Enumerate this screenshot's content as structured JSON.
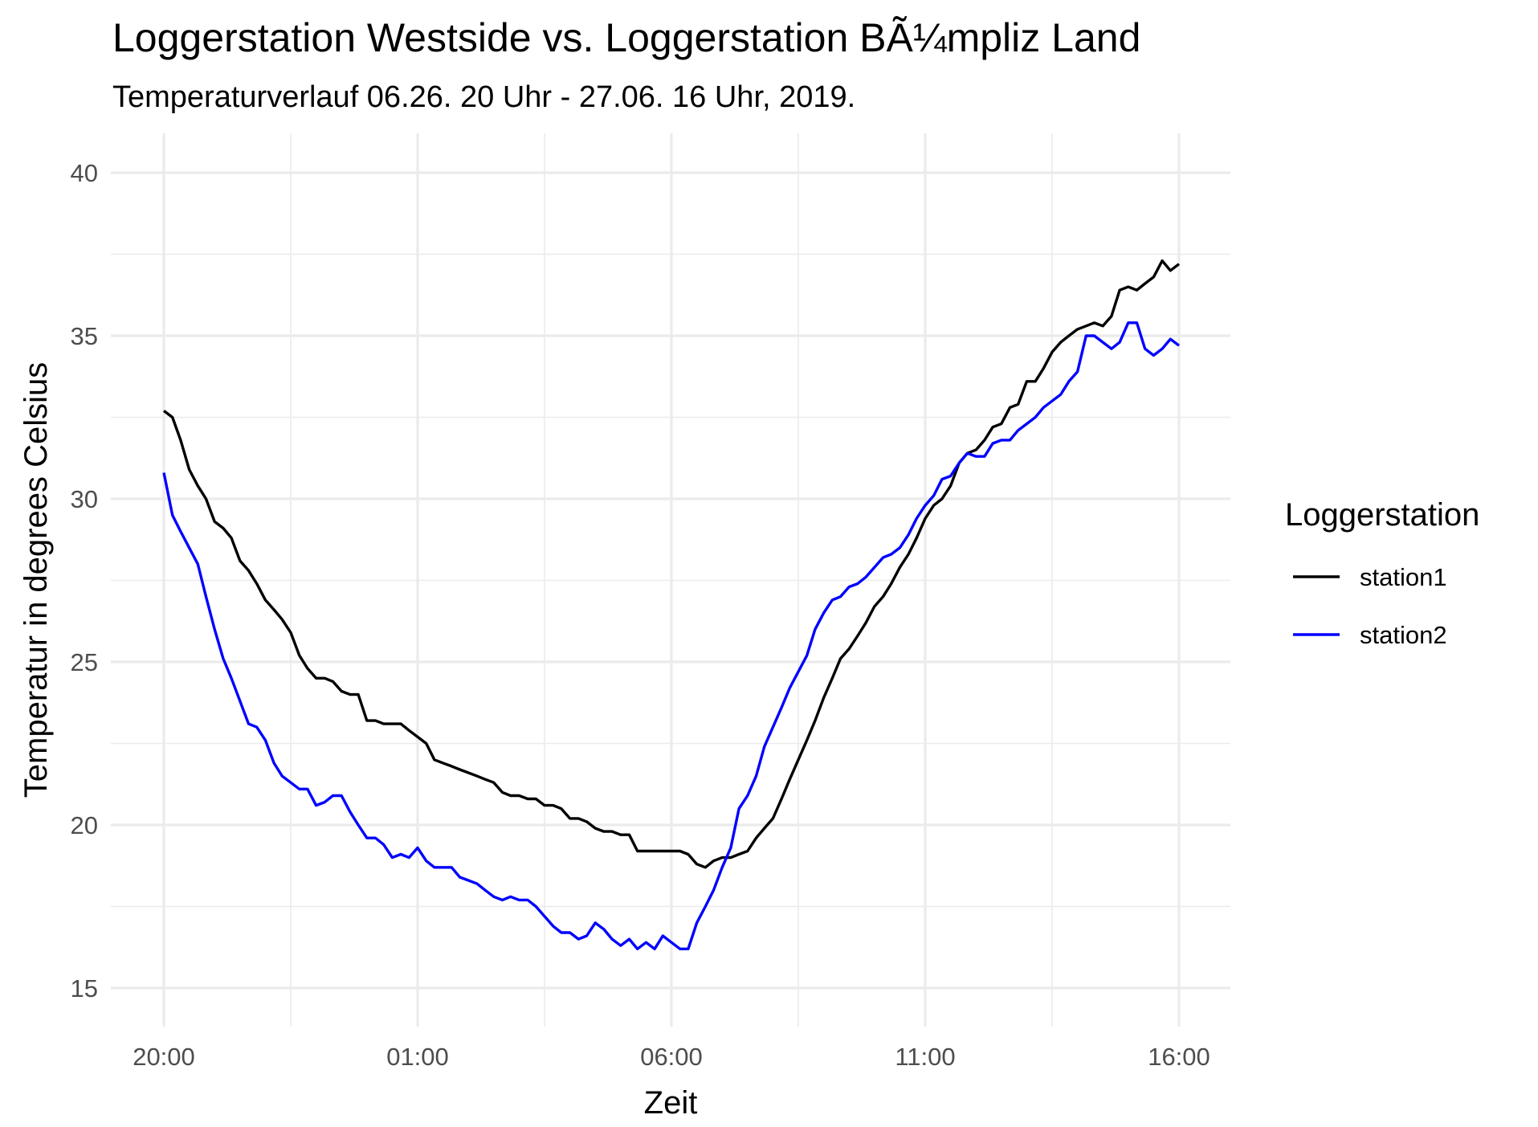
{
  "chart_data": {
    "type": "line",
    "title": "Loggerstation Westside vs. Loggerstation BÃ¼mpliz Land",
    "subtitle": "Temperaturverlauf 06.26. 20 Uhr - 27.06. 16 Uhr, 2019.",
    "xlabel": "Zeit",
    "ylabel": "Temperatur in degrees Celsius",
    "x_unit": "hours",
    "x_range": [
      20,
      40
    ],
    "x_ticks": [
      20,
      25,
      30,
      35,
      40
    ],
    "x_tick_labels": [
      "20:00",
      "01:00",
      "06:00",
      "11:00",
      "16:00"
    ],
    "ylim": [
      15,
      40
    ],
    "y_ticks": [
      15,
      20,
      25,
      30,
      35,
      40
    ],
    "y_tick_labels": [
      "15",
      "20",
      "25",
      "30",
      "35",
      "40"
    ],
    "grid": true,
    "legend": {
      "title": "Loggerstation",
      "position": "right"
    },
    "series": [
      {
        "name": "station1",
        "color": "#000000",
        "points": [
          [
            20.0,
            32.7
          ],
          [
            20.17,
            32.5
          ],
          [
            20.33,
            31.8
          ],
          [
            20.5,
            30.9
          ],
          [
            20.67,
            30.4
          ],
          [
            20.83,
            30.0
          ],
          [
            21.0,
            29.3
          ],
          [
            21.17,
            29.1
          ],
          [
            21.33,
            28.8
          ],
          [
            21.5,
            28.1
          ],
          [
            21.67,
            27.8
          ],
          [
            21.83,
            27.4
          ],
          [
            22.0,
            26.9
          ],
          [
            22.17,
            26.6
          ],
          [
            22.33,
            26.3
          ],
          [
            22.5,
            25.9
          ],
          [
            22.67,
            25.2
          ],
          [
            22.83,
            24.8
          ],
          [
            23.0,
            24.5
          ],
          [
            23.17,
            24.5
          ],
          [
            23.33,
            24.4
          ],
          [
            23.5,
            24.1
          ],
          [
            23.67,
            24.0
          ],
          [
            23.83,
            24.0
          ],
          [
            24.0,
            23.2
          ],
          [
            24.17,
            23.2
          ],
          [
            24.33,
            23.1
          ],
          [
            24.5,
            23.1
          ],
          [
            24.67,
            23.1
          ],
          [
            24.83,
            22.9
          ],
          [
            25.0,
            22.7
          ],
          [
            25.17,
            22.5
          ],
          [
            25.33,
            22.0
          ],
          [
            25.5,
            21.9
          ],
          [
            25.67,
            21.8
          ],
          [
            25.83,
            21.7
          ],
          [
            26.0,
            21.6
          ],
          [
            26.17,
            21.5
          ],
          [
            26.33,
            21.4
          ],
          [
            26.5,
            21.3
          ],
          [
            26.67,
            21.0
          ],
          [
            26.83,
            20.9
          ],
          [
            27.0,
            20.9
          ],
          [
            27.17,
            20.8
          ],
          [
            27.33,
            20.8
          ],
          [
            27.5,
            20.6
          ],
          [
            27.67,
            20.6
          ],
          [
            27.83,
            20.5
          ],
          [
            28.0,
            20.2
          ],
          [
            28.17,
            20.2
          ],
          [
            28.33,
            20.1
          ],
          [
            28.5,
            19.9
          ],
          [
            28.67,
            19.8
          ],
          [
            28.83,
            19.8
          ],
          [
            29.0,
            19.7
          ],
          [
            29.17,
            19.7
          ],
          [
            29.33,
            19.2
          ],
          [
            29.5,
            19.2
          ],
          [
            29.67,
            19.2
          ],
          [
            29.83,
            19.2
          ],
          [
            30.0,
            19.2
          ],
          [
            30.17,
            19.2
          ],
          [
            30.33,
            19.1
          ],
          [
            30.5,
            18.8
          ],
          [
            30.67,
            18.7
          ],
          [
            30.83,
            18.9
          ],
          [
            31.0,
            19.0
          ],
          [
            31.17,
            19.0
          ],
          [
            31.33,
            19.1
          ],
          [
            31.5,
            19.2
          ],
          [
            31.67,
            19.6
          ],
          [
            31.83,
            19.9
          ],
          [
            32.0,
            20.2
          ],
          [
            32.17,
            20.8
          ],
          [
            32.33,
            21.4
          ],
          [
            32.5,
            22.0
          ],
          [
            32.67,
            22.6
          ],
          [
            32.83,
            23.2
          ],
          [
            33.0,
            23.9
          ],
          [
            33.17,
            24.5
          ],
          [
            33.33,
            25.1
          ],
          [
            33.5,
            25.4
          ],
          [
            33.67,
            25.8
          ],
          [
            33.83,
            26.2
          ],
          [
            34.0,
            26.7
          ],
          [
            34.17,
            27.0
          ],
          [
            34.33,
            27.4
          ],
          [
            34.5,
            27.9
          ],
          [
            34.67,
            28.3
          ],
          [
            34.83,
            28.8
          ],
          [
            35.0,
            29.4
          ],
          [
            35.17,
            29.8
          ],
          [
            35.33,
            30.0
          ],
          [
            35.5,
            30.4
          ],
          [
            35.67,
            31.1
          ],
          [
            35.83,
            31.4
          ],
          [
            36.0,
            31.5
          ],
          [
            36.17,
            31.8
          ],
          [
            36.33,
            32.2
          ],
          [
            36.5,
            32.3
          ],
          [
            36.67,
            32.8
          ],
          [
            36.83,
            32.9
          ],
          [
            37.0,
            33.6
          ],
          [
            37.17,
            33.6
          ],
          [
            37.33,
            34.0
          ],
          [
            37.5,
            34.5
          ],
          [
            37.67,
            34.8
          ],
          [
            37.83,
            35.0
          ],
          [
            38.0,
            35.2
          ],
          [
            38.17,
            35.3
          ],
          [
            38.33,
            35.4
          ],
          [
            38.5,
            35.3
          ],
          [
            38.67,
            35.6
          ],
          [
            38.83,
            36.4
          ],
          [
            39.0,
            36.5
          ],
          [
            39.17,
            36.4
          ],
          [
            39.33,
            36.6
          ],
          [
            39.5,
            36.8
          ],
          [
            39.67,
            37.3
          ],
          [
            39.83,
            37.0
          ],
          [
            40.0,
            37.2
          ]
        ]
      },
      {
        "name": "station2",
        "color": "#0000ff",
        "points": [
          [
            20.0,
            30.8
          ],
          [
            20.17,
            29.5
          ],
          [
            20.33,
            29.0
          ],
          [
            20.5,
            28.5
          ],
          [
            20.67,
            28.0
          ],
          [
            20.83,
            27.0
          ],
          [
            21.0,
            26.0
          ],
          [
            21.17,
            25.1
          ],
          [
            21.33,
            24.5
          ],
          [
            21.5,
            23.8
          ],
          [
            21.67,
            23.1
          ],
          [
            21.83,
            23.0
          ],
          [
            22.0,
            22.6
          ],
          [
            22.17,
            21.9
          ],
          [
            22.33,
            21.5
          ],
          [
            22.5,
            21.3
          ],
          [
            22.67,
            21.1
          ],
          [
            22.83,
            21.1
          ],
          [
            23.0,
            20.6
          ],
          [
            23.17,
            20.7
          ],
          [
            23.33,
            20.9
          ],
          [
            23.5,
            20.9
          ],
          [
            23.67,
            20.4
          ],
          [
            23.83,
            20.0
          ],
          [
            24.0,
            19.6
          ],
          [
            24.17,
            19.6
          ],
          [
            24.33,
            19.4
          ],
          [
            24.5,
            19.0
          ],
          [
            24.67,
            19.1
          ],
          [
            24.83,
            19.0
          ],
          [
            25.0,
            19.3
          ],
          [
            25.17,
            18.9
          ],
          [
            25.33,
            18.7
          ],
          [
            25.5,
            18.7
          ],
          [
            25.67,
            18.7
          ],
          [
            25.83,
            18.4
          ],
          [
            26.0,
            18.3
          ],
          [
            26.17,
            18.2
          ],
          [
            26.33,
            18.0
          ],
          [
            26.5,
            17.8
          ],
          [
            26.67,
            17.7
          ],
          [
            26.83,
            17.8
          ],
          [
            27.0,
            17.7
          ],
          [
            27.17,
            17.7
          ],
          [
            27.33,
            17.5
          ],
          [
            27.5,
            17.2
          ],
          [
            27.67,
            16.9
          ],
          [
            27.83,
            16.7
          ],
          [
            28.0,
            16.7
          ],
          [
            28.17,
            16.5
          ],
          [
            28.33,
            16.6
          ],
          [
            28.5,
            17.0
          ],
          [
            28.67,
            16.8
          ],
          [
            28.83,
            16.5
          ],
          [
            29.0,
            16.3
          ],
          [
            29.17,
            16.5
          ],
          [
            29.33,
            16.2
          ],
          [
            29.5,
            16.4
          ],
          [
            29.67,
            16.2
          ],
          [
            29.83,
            16.6
          ],
          [
            30.0,
            16.4
          ],
          [
            30.17,
            16.2
          ],
          [
            30.33,
            16.2
          ],
          [
            30.5,
            17.0
          ],
          [
            30.67,
            17.5
          ],
          [
            30.83,
            18.0
          ],
          [
            31.0,
            18.7
          ],
          [
            31.17,
            19.3
          ],
          [
            31.33,
            20.5
          ],
          [
            31.5,
            20.9
          ],
          [
            31.67,
            21.5
          ],
          [
            31.83,
            22.4
          ],
          [
            32.0,
            23.0
          ],
          [
            32.17,
            23.6
          ],
          [
            32.33,
            24.2
          ],
          [
            32.5,
            24.7
          ],
          [
            32.67,
            25.2
          ],
          [
            32.83,
            26.0
          ],
          [
            33.0,
            26.5
          ],
          [
            33.17,
            26.9
          ],
          [
            33.33,
            27.0
          ],
          [
            33.5,
            27.3
          ],
          [
            33.67,
            27.4
          ],
          [
            33.83,
            27.6
          ],
          [
            34.0,
            27.9
          ],
          [
            34.17,
            28.2
          ],
          [
            34.33,
            28.3
          ],
          [
            34.5,
            28.5
          ],
          [
            34.67,
            28.9
          ],
          [
            34.83,
            29.4
          ],
          [
            35.0,
            29.8
          ],
          [
            35.17,
            30.1
          ],
          [
            35.33,
            30.6
          ],
          [
            35.5,
            30.7
          ],
          [
            35.67,
            31.1
          ],
          [
            35.83,
            31.4
          ],
          [
            36.0,
            31.3
          ],
          [
            36.17,
            31.3
          ],
          [
            36.33,
            31.7
          ],
          [
            36.5,
            31.8
          ],
          [
            36.67,
            31.8
          ],
          [
            36.83,
            32.1
          ],
          [
            37.0,
            32.3
          ],
          [
            37.17,
            32.5
          ],
          [
            37.33,
            32.8
          ],
          [
            37.5,
            33.0
          ],
          [
            37.67,
            33.2
          ],
          [
            37.83,
            33.6
          ],
          [
            38.0,
            33.9
          ],
          [
            38.17,
            35.0
          ],
          [
            38.33,
            35.0
          ],
          [
            38.5,
            34.8
          ],
          [
            38.67,
            34.6
          ],
          [
            38.83,
            34.8
          ],
          [
            39.0,
            35.4
          ],
          [
            39.17,
            35.4
          ],
          [
            39.33,
            34.6
          ],
          [
            39.5,
            34.4
          ],
          [
            39.67,
            34.6
          ],
          [
            39.83,
            34.9
          ],
          [
            40.0,
            34.7
          ]
        ]
      }
    ]
  }
}
